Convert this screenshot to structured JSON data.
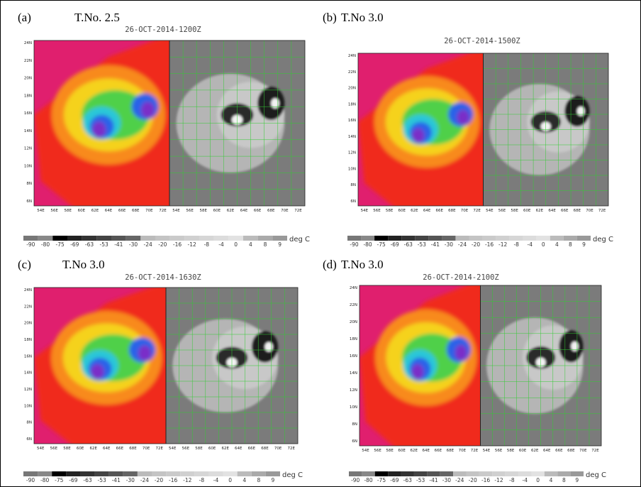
{
  "panels": [
    {
      "label": "(a)",
      "title": "T.No. 2.5",
      "time": "26-OCT-2014-1200Z"
    },
    {
      "label": "(b)",
      "title": "T.No 3.0",
      "time": "26-OCT-2014-1500Z"
    },
    {
      "label": "(c)",
      "title": "T.No 3.0",
      "time": "26-OCT-2014-1630Z"
    },
    {
      "label": "(d)",
      "title": "T.No 3.0",
      "time": "26-OCT-2014-2100Z"
    }
  ],
  "lat_ticks": [
    "24N",
    "22N",
    "20N",
    "18N",
    "16N",
    "14N",
    "12N",
    "10N",
    "8N",
    "6N"
  ],
  "lon_ticks": [
    "54E",
    "56E",
    "58E",
    "60E",
    "62E",
    "64E",
    "66E",
    "68E",
    "70E",
    "72E"
  ],
  "colorbar_labels": [
    "-90",
    "-80",
    "-75",
    "-69",
    "-63",
    "-53",
    "-41",
    "-30",
    "-24",
    "-20",
    "-16",
    "-12",
    "-8",
    "-4",
    "0",
    "4",
    "8",
    "9"
  ],
  "colorbar_unit": "deg C"
}
